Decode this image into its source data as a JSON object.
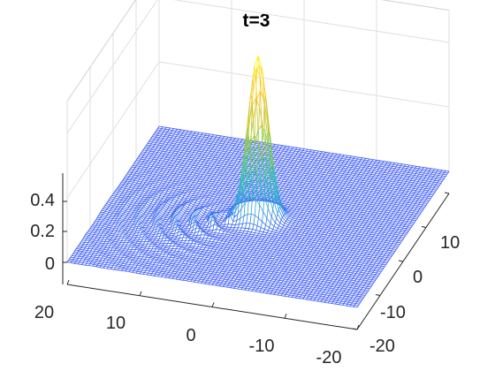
{
  "chart_data": {
    "type": "surface",
    "title": "t=3",
    "xlabel": "",
    "ylabel": "",
    "zlabel": "",
    "grid": true,
    "x_ticks": [
      "20",
      "10",
      "0",
      "-10",
      "-20"
    ],
    "y_ticks": [
      "10",
      "0",
      "-10",
      "-20"
    ],
    "z_ticks": [
      "0.4",
      "0.2",
      "0"
    ],
    "xlim": [
      -20,
      20
    ],
    "ylim": [
      -20,
      20
    ],
    "zlim": [
      0,
      0.5
    ],
    "peak": {
      "x": 0,
      "y": 0,
      "z": 0.5
    },
    "colormap": [
      "#3d5bf5",
      "#2fa8d8",
      "#3cc8a0",
      "#a7cc32",
      "#f9c22a",
      "#f9fb15"
    ]
  }
}
